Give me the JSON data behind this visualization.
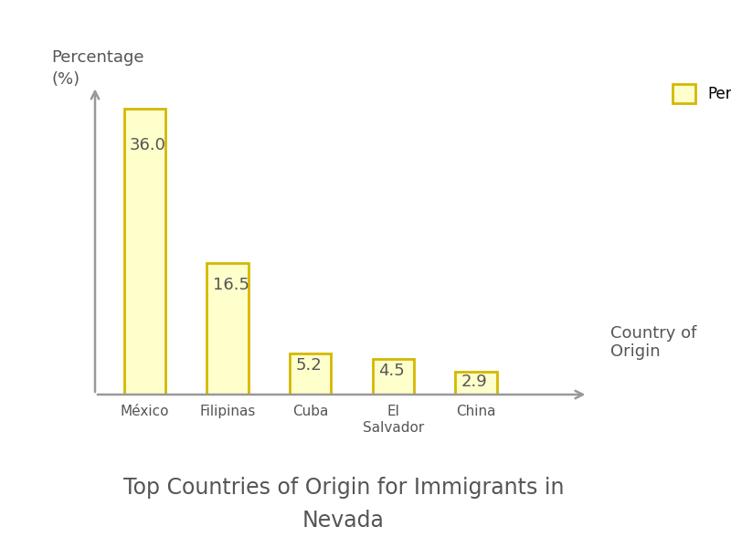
{
  "categories": [
    "México",
    "Filipinas",
    "Cuba",
    "El\nSalvador",
    "China"
  ],
  "values": [
    36.0,
    16.5,
    5.2,
    4.5,
    2.9
  ],
  "bar_color": "#ffffcc",
  "bar_edgecolor": "#d4b800",
  "title_line1": "Top Countries of Origin for Immigrants in",
  "title_line2": "Nevada",
  "title_fontsize": 17,
  "ylabel_line1": "Percentage",
  "ylabel_line2": "(%)",
  "xlabel": "Country of\nOrigin",
  "legend_label": "Percentage",
  "bar_label_fontsize": 13,
  "axis_label_fontsize": 13,
  "tick_label_fontsize": 11,
  "background_color": "#ffffff",
  "ylim": [
    0,
    40
  ],
  "text_color": "#555555",
  "arrow_color": "#999999"
}
